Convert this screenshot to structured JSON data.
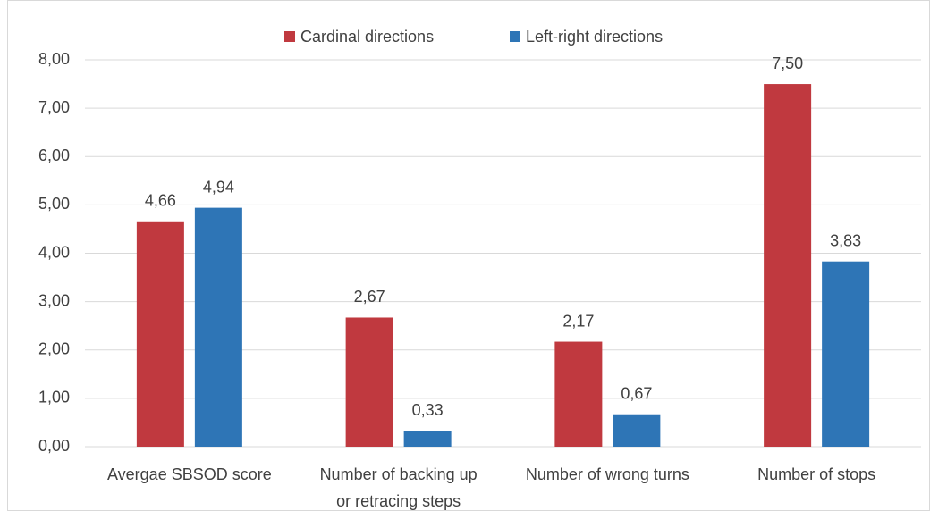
{
  "chart_data": {
    "type": "bar",
    "categories": [
      "Avergae SBSOD score",
      "Number of backing up or retracing steps",
      "Number of wrong turns",
      "Number of stops"
    ],
    "series": [
      {
        "name": "Cardinal directions",
        "color": "#c0393f",
        "values": [
          4.66,
          2.67,
          2.17,
          7.5
        ],
        "value_labels": [
          "4,66",
          "2,67",
          "2,17",
          "7,50"
        ]
      },
      {
        "name": "Left-right directions",
        "color": "#2e75b6",
        "values": [
          4.94,
          0.33,
          0.67,
          3.83
        ],
        "value_labels": [
          "4,94",
          "0,33",
          "0,67",
          "3,83"
        ]
      }
    ],
    "ylim": [
      0,
      8
    ],
    "yticks": [
      {
        "value": 0,
        "label": "0,00"
      },
      {
        "value": 1,
        "label": "1,00"
      },
      {
        "value": 2,
        "label": "2,00"
      },
      {
        "value": 3,
        "label": "3,00"
      },
      {
        "value": 4,
        "label": "4,00"
      },
      {
        "value": 5,
        "label": "5,00"
      },
      {
        "value": 6,
        "label": "6,00"
      },
      {
        "value": 7,
        "label": "7,00"
      },
      {
        "value": 8,
        "label": "8,00"
      }
    ],
    "grid": true,
    "legend": "top"
  }
}
